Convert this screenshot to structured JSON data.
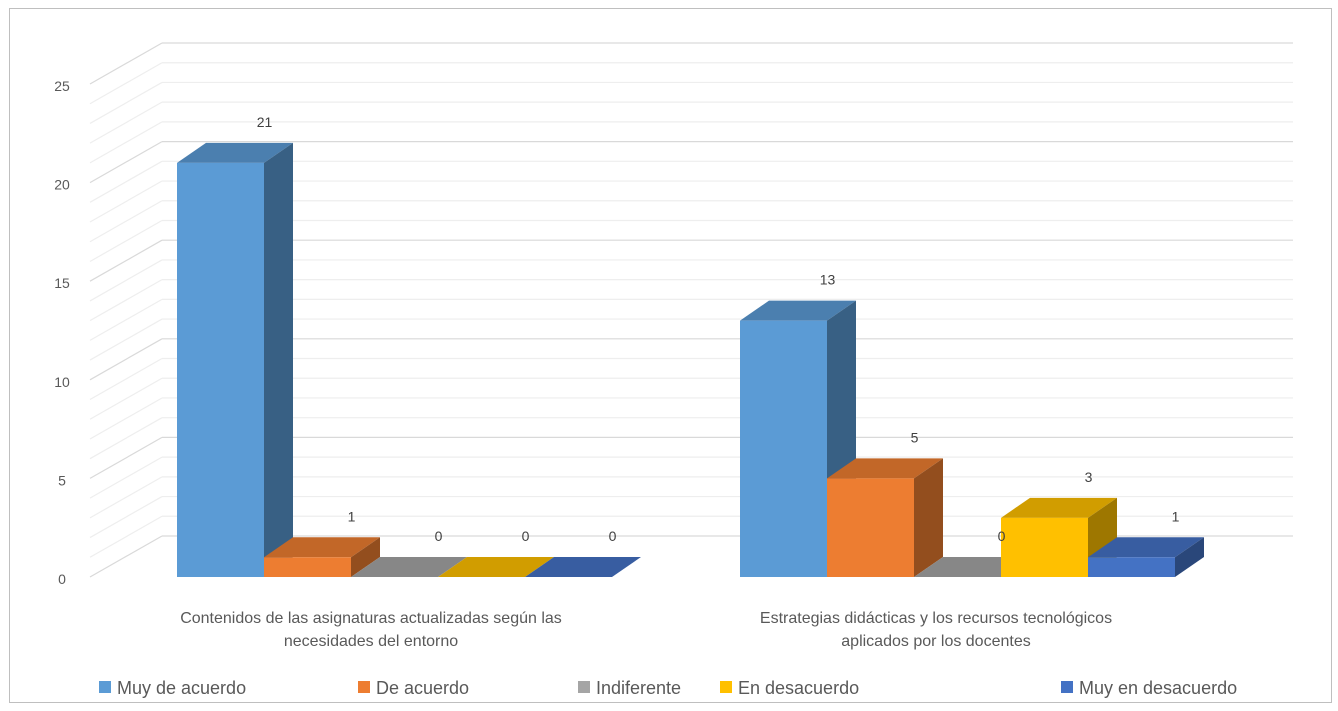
{
  "chart_data": {
    "type": "bar",
    "title": "",
    "xlabel": "",
    "ylabel": "",
    "ylim": [
      0,
      25
    ],
    "y_ticks": [
      0,
      5,
      10,
      15,
      20,
      25
    ],
    "grid": true,
    "legend_position": "bottom",
    "categories": [
      [
        "Contenidos  de las asignaturas actualizadas según las",
        "necesidades del entorno"
      ],
      [
        "Estrategias didácticas y los recursos tecnológicos",
        "aplicados por los docentes"
      ]
    ],
    "series": [
      {
        "name": "Muy  de acuerdo",
        "values": [
          21,
          13
        ],
        "color": "#5B9BD5"
      },
      {
        "name": "De acuerdo",
        "values": [
          1,
          5
        ],
        "color": "#ED7D31"
      },
      {
        "name": "Indiferente",
        "values": [
          0,
          0
        ],
        "color": "#A5A5A5"
      },
      {
        "name": "En desacuerdo",
        "values": [
          0,
          3
        ],
        "color": "#FFC000"
      },
      {
        "name": "Muy en desacuerdo",
        "values": [
          0,
          1
        ],
        "color": "#4472C4"
      }
    ]
  }
}
